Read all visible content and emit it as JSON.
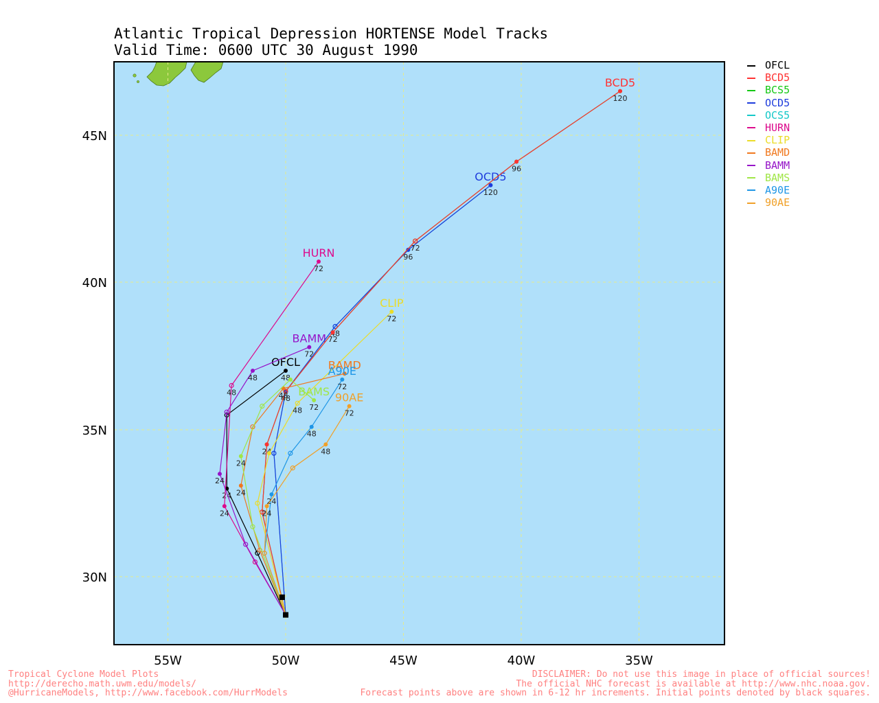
{
  "title": {
    "line1": "Atlantic Tropical Depression HORTENSE Model Tracks",
    "line2": "Valid Time: 0600 UTC 30 August 1990"
  },
  "axes": {
    "lon_ticks": [
      "55W",
      "50W",
      "45W",
      "40W",
      "35W"
    ],
    "lat_ticks": [
      "45N",
      "40N",
      "35N",
      "30N"
    ]
  },
  "colors": {
    "ocean": "#b0e0fa",
    "land": "#8cc83c",
    "grid": "#e6eb8c",
    "OFCL": "#000000",
    "BCD5": "#ff3232",
    "BCS5": "#14c814",
    "OCD5": "#1e3cdc",
    "OCS5": "#14c8c8",
    "HURN": "#dc0a8c",
    "CLIP": "#ebdc28",
    "BAMD": "#f0781e",
    "BAMM": "#9614c8",
    "BAMS": "#a0e646",
    "A90E": "#1e96e6",
    "90AE": "#f0a028"
  },
  "legend": [
    {
      "model": "OFCL"
    },
    {
      "model": "BCD5"
    },
    {
      "model": "BCS5"
    },
    {
      "model": "OCD5"
    },
    {
      "model": "OCS5"
    },
    {
      "model": "HURN"
    },
    {
      "model": "CLIP"
    },
    {
      "model": "BAMD"
    },
    {
      "model": "BAMM"
    },
    {
      "model": "BAMS"
    },
    {
      "model": "A90E"
    },
    {
      "model": "90AE"
    }
  ],
  "initial_points": [
    {
      "lon": -50.0,
      "lat": 28.7
    },
    {
      "lon": -50.15,
      "lat": 29.3
    }
  ],
  "tracks": [
    {
      "model": "OFCL",
      "label": "OFCL",
      "points": [
        {
          "lon": -50.0,
          "lat": 28.7
        },
        {
          "lon": -51.2,
          "lat": 30.8
        },
        {
          "lon": -52.5,
          "lat": 33.0,
          "tau": "24"
        },
        {
          "lon": -52.5,
          "lat": 35.5
        },
        {
          "lon": -50.0,
          "lat": 37.0,
          "tau": "48"
        }
      ]
    },
    {
      "model": "HURN",
      "label": "HURN",
      "points": [
        {
          "lon": -50.0,
          "lat": 28.7
        },
        {
          "lon": -51.3,
          "lat": 30.5
        },
        {
          "lon": -52.6,
          "lat": 32.4,
          "tau": "24"
        },
        {
          "lon": -52.3,
          "lat": 36.5,
          "tau": "48"
        },
        {
          "lon": -48.6,
          "lat": 40.7,
          "tau": "72"
        }
      ]
    },
    {
      "model": "BAMM",
      "label": "BAMM",
      "points": [
        {
          "lon": -50.0,
          "lat": 28.7
        },
        {
          "lon": -51.7,
          "lat": 31.1
        },
        {
          "lon": -52.8,
          "lat": 33.5,
          "tau": "24"
        },
        {
          "lon": -52.5,
          "lat": 35.6
        },
        {
          "lon": -51.4,
          "lat": 37.0,
          "tau": "48"
        },
        {
          "lon": -49.0,
          "lat": 37.8,
          "tau": "72"
        }
      ]
    },
    {
      "model": "OCS5",
      "label": "",
      "points": [
        {
          "lon": -50.0,
          "lat": 28.7
        },
        {
          "lon": -50.5,
          "lat": 34.2
        },
        {
          "lon": -50.0,
          "lat": 36.3
        },
        {
          "lon": -47.9,
          "lat": 38.5
        },
        {
          "lon": -44.8,
          "lat": 41.1
        },
        {
          "lon": -41.3,
          "lat": 43.3
        }
      ]
    },
    {
      "model": "OCD5",
      "label": "OCD5",
      "points": [
        {
          "lon": -50.0,
          "lat": 28.7
        },
        {
          "lon": -50.5,
          "lat": 34.2
        },
        {
          "lon": -50.0,
          "lat": 36.3,
          "tau": "48"
        },
        {
          "lon": -47.9,
          "lat": 38.5,
          "tau": "48"
        },
        {
          "lon": -44.8,
          "lat": 41.1,
          "tau": "96"
        },
        {
          "lon": -41.3,
          "lat": 43.3,
          "tau": "120"
        }
      ]
    },
    {
      "model": "BCS5",
      "label": "",
      "points": [
        {
          "lon": -50.0,
          "lat": 28.7
        },
        {
          "lon": -51.0,
          "lat": 32.2
        },
        {
          "lon": -50.8,
          "lat": 34.5,
          "tau": "24"
        },
        {
          "lon": -50.0,
          "lat": 36.3
        },
        {
          "lon": -48.0,
          "lat": 38.3,
          "tau": "72"
        },
        {
          "lon": -44.5,
          "lat": 41.4,
          "tau": "72"
        },
        {
          "lon": -40.2,
          "lat": 44.1,
          "tau": "96"
        },
        {
          "lon": -35.8,
          "lat": 46.5
        }
      ]
    },
    {
      "model": "BCD5",
      "label": "BCD5",
      "points": [
        {
          "lon": -50.0,
          "lat": 28.7
        },
        {
          "lon": -51.0,
          "lat": 32.2
        },
        {
          "lon": -50.8,
          "lat": 34.5
        },
        {
          "lon": -50.0,
          "lat": 36.3
        },
        {
          "lon": -48.0,
          "lat": 38.3
        },
        {
          "lon": -44.5,
          "lat": 41.4
        },
        {
          "lon": -40.2,
          "lat": 44.1
        },
        {
          "lon": -35.8,
          "lat": 46.5,
          "tau": "120"
        }
      ]
    },
    {
      "model": "CLIP",
      "label": "CLIP",
      "points": [
        {
          "lon": -50.0,
          "lat": 28.7
        },
        {
          "lon": -51.2,
          "lat": 32.5
        },
        {
          "lon": -50.7,
          "lat": 34.2
        },
        {
          "lon": -49.5,
          "lat": 35.9,
          "tau": "48"
        },
        {
          "lon": -45.5,
          "lat": 39.0,
          "tau": "72"
        }
      ]
    },
    {
      "model": "BAMD",
      "label": "BAMD",
      "points": [
        {
          "lon": -50.0,
          "lat": 28.7
        },
        {
          "lon": -51.1,
          "lat": 30.9
        },
        {
          "lon": -51.9,
          "lat": 33.1,
          "tau": "24"
        },
        {
          "lon": -51.4,
          "lat": 35.1
        },
        {
          "lon": -50.1,
          "lat": 36.4,
          "tau": "48"
        },
        {
          "lon": -47.5,
          "lat": 36.9
        }
      ]
    },
    {
      "model": "BAMS",
      "label": "BAMS",
      "points": [
        {
          "lon": -50.0,
          "lat": 28.7
        },
        {
          "lon": -51.4,
          "lat": 31.7
        },
        {
          "lon": -51.9,
          "lat": 34.1,
          "tau": "24"
        },
        {
          "lon": -51.0,
          "lat": 35.8
        },
        {
          "lon": -49.8,
          "lat": 36.7
        },
        {
          "lon": -48.8,
          "lat": 36.0,
          "tau": "72"
        }
      ]
    },
    {
      "model": "A90E",
      "label": "A90E",
      "points": [
        {
          "lon": -50.0,
          "lat": 28.7
        },
        {
          "lon": -50.9,
          "lat": 30.8
        },
        {
          "lon": -50.6,
          "lat": 32.8,
          "tau": "24"
        },
        {
          "lon": -49.8,
          "lat": 34.2
        },
        {
          "lon": -48.9,
          "lat": 35.1,
          "tau": "48"
        },
        {
          "lon": -47.6,
          "lat": 36.7,
          "tau": "72"
        }
      ]
    },
    {
      "model": "90AE",
      "label": "90AE",
      "points": [
        {
          "lon": -50.0,
          "lat": 28.7
        },
        {
          "lon": -50.9,
          "lat": 30.8
        },
        {
          "lon": -50.8,
          "lat": 32.4,
          "tau": "24"
        },
        {
          "lon": -49.7,
          "lat": 33.7
        },
        {
          "lon": -48.3,
          "lat": 34.5,
          "tau": "48"
        },
        {
          "lon": -47.3,
          "lat": 35.8,
          "tau": "72"
        }
      ]
    }
  ],
  "footer": {
    "left1": "Tropical Cyclone Model Plots",
    "left2": "http://derecho.math.uwm.edu/models/",
    "left3": "@HurricaneModels, http://www.facebook.com/HurrModels",
    "right1": "DISCLAIMER: Do not use this image in place of official sources!",
    "right2": "The official NHC forecast is available at http://www.nhc.noaa.gov.",
    "right3": "Forecast points above are shown in 6-12 hr increments. Initial points denoted by black squares."
  }
}
